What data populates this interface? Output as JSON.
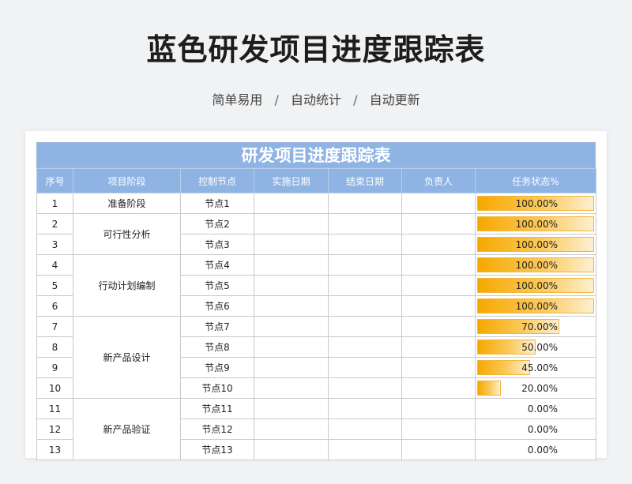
{
  "header": {
    "title": "蓝色研发项目进度跟踪表",
    "subtitle_parts": [
      "简单易用",
      "自动统计",
      "自动更新"
    ],
    "separator": "/"
  },
  "sheet": {
    "title": "研发项目进度跟踪表",
    "columns": [
      "序号",
      "项目阶段",
      "控制节点",
      "实施日期",
      "结束日期",
      "负责人",
      "任务状态%"
    ],
    "phases": [
      "准备阶段",
      "可行性分析",
      "行动计划编制",
      "新产品设计",
      "新产品验证"
    ],
    "rows": [
      {
        "no": "1",
        "node": "节点1",
        "status": "100.00%",
        "progress": 1.0
      },
      {
        "no": "2",
        "node": "节点2",
        "status": "100.00%",
        "progress": 1.0
      },
      {
        "no": "3",
        "node": "节点3",
        "status": "100.00%",
        "progress": 1.0
      },
      {
        "no": "4",
        "node": "节点4",
        "status": "100.00%",
        "progress": 1.0
      },
      {
        "no": "5",
        "node": "节点5",
        "status": "100.00%",
        "progress": 1.0
      },
      {
        "no": "6",
        "node": "节点6",
        "status": "100.00%",
        "progress": 1.0
      },
      {
        "no": "7",
        "node": "节点7",
        "status": "70.00%",
        "progress": 0.7
      },
      {
        "no": "8",
        "node": "节点8",
        "status": "50.00%",
        "progress": 0.5
      },
      {
        "no": "9",
        "node": "节点9",
        "status": "45.00%",
        "progress": 0.45
      },
      {
        "no": "10",
        "node": "节点10",
        "status": "20.00%",
        "progress": 0.2
      },
      {
        "no": "11",
        "node": "节点11",
        "status": "0.00%",
        "progress": 0
      },
      {
        "no": "12",
        "node": "节点12",
        "status": "0.00%",
        "progress": 0
      },
      {
        "no": "13",
        "node": "节点13",
        "status": "0.00%",
        "progress": 0
      }
    ]
  },
  "colors": {
    "header_blue": "#8fb4e3",
    "bar_orange": "#f6a800"
  }
}
